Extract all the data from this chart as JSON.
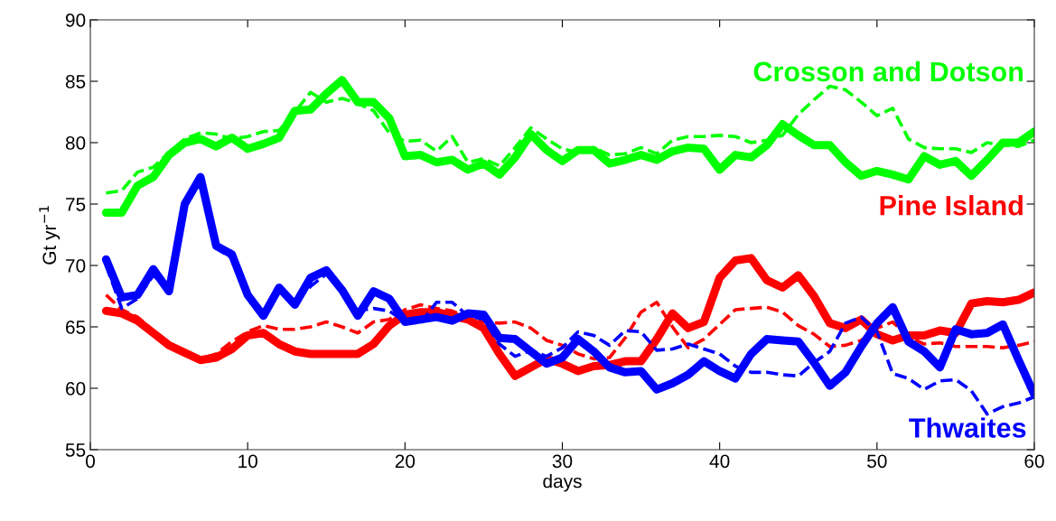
{
  "chart_data": {
    "type": "line",
    "xlabel": "days",
    "ylabel": "Gt yr$^{−1}$",
    "xlim": [
      0,
      60
    ],
    "ylim": [
      55,
      90
    ],
    "xticks": [
      0,
      10,
      20,
      30,
      40,
      50,
      60
    ],
    "yticks": [
      55,
      60,
      65,
      70,
      75,
      80,
      85,
      90
    ],
    "grid": false,
    "legend": false,
    "marker": "none",
    "x": [
      1,
      2,
      3,
      4,
      5,
      6,
      7,
      8,
      9,
      10,
      11,
      12,
      13,
      14,
      15,
      16,
      17,
      18,
      19,
      20,
      21,
      22,
      23,
      24,
      25,
      26,
      27,
      28,
      29,
      30,
      31,
      32,
      33,
      34,
      35,
      36,
      37,
      38,
      39,
      40,
      41,
      42,
      43,
      44,
      45,
      46,
      47,
      48,
      49,
      50,
      51,
      52,
      53,
      54,
      55,
      56,
      57,
      58,
      59,
      60
    ],
    "series": [
      {
        "name": "Crosson and Dotson",
        "color": "#00ff00",
        "line_style": "solid",
        "values": [
          74.3,
          74.3,
          76.5,
          77.2,
          79,
          80,
          80.3,
          79.7,
          80.4,
          79.5,
          79.9,
          80.4,
          82.6,
          82.7,
          84,
          85.1,
          83.3,
          83.3,
          82,
          78.9,
          79,
          78.4,
          78.6,
          77.8,
          78.3,
          77.4,
          78.8,
          80.7,
          79.4,
          78.5,
          79.4,
          79.4,
          78.3,
          78.6,
          79.0,
          78.6,
          79.3,
          79.6,
          79.5,
          77.8,
          79.0,
          78.8,
          79.8,
          81.5,
          80.6,
          79.8,
          79.8,
          78.4,
          77.3,
          77.7,
          77.4,
          77.0,
          78.9,
          78.2,
          78.5,
          77.3,
          78.6,
          80,
          80,
          80.9
        ]
      },
      {
        "color": "#00ff00",
        "line_style": "dashed",
        "values": [
          75.9,
          76.1,
          77.6,
          78,
          79.2,
          80.3,
          80.8,
          80.7,
          80.3,
          80.5,
          80.9,
          81.0,
          82.5,
          84.1,
          83.3,
          83.6,
          83.2,
          82.6,
          80.8,
          80.1,
          80.2,
          79.3,
          80.5,
          78.4,
          78.7,
          78.1,
          79.6,
          81.2,
          80.3,
          79.5,
          79.2,
          79.6,
          79.0,
          79.1,
          79.6,
          79.1,
          80.2,
          80.5,
          80.5,
          80.6,
          80.5,
          80.0,
          80.2,
          80.6,
          82.3,
          83.5,
          84.6,
          84.3,
          83.3,
          82.2,
          82.8,
          80.3,
          79.6,
          79.5,
          79.5,
          79.2,
          80.0,
          79.8,
          79.7,
          80.2
        ]
      },
      {
        "name": "Pine Island",
        "color": "#ff0000",
        "line_style": "solid",
        "values": [
          66.3,
          66.1,
          65.5,
          64.5,
          63.5,
          62.9,
          62.3,
          62.5,
          63.2,
          64.3,
          64.5,
          63.6,
          63.0,
          62.8,
          62.8,
          62.8,
          62.8,
          63.6,
          65.1,
          66.0,
          66.2,
          66.2,
          65.9,
          65.6,
          64.9,
          62.8,
          61.0,
          61.7,
          62.4,
          62.0,
          61.4,
          61.8,
          61.9,
          62.2,
          62.2,
          64.0,
          66.1,
          64.9,
          65.4,
          69.0,
          70.4,
          70.6,
          68.8,
          68.2,
          69.2,
          67.5,
          65.3,
          64.9,
          65.6,
          64.4,
          63.9,
          64.3,
          64.3,
          64.7,
          64.5,
          66.9,
          67.1,
          67.0,
          67.2,
          67.8
        ]
      },
      {
        "color": "#ff0000",
        "line_style": "dashed",
        "values": [
          67.6,
          66.4,
          65.8,
          64.7,
          63.5,
          62.8,
          62.4,
          62.8,
          63.8,
          64.6,
          65.1,
          64.8,
          64.8,
          65.0,
          65.4,
          65.0,
          64.5,
          65.4,
          65.6,
          66.4,
          66.8,
          66.5,
          66.3,
          65.8,
          65.4,
          65.3,
          65.4,
          64.9,
          63.9,
          63.5,
          62.8,
          62.4,
          62.5,
          64.1,
          66.2,
          67.0,
          65.0,
          63.3,
          64.0,
          65.2,
          66.4,
          66.5,
          66.6,
          66.2,
          65.1,
          64.4,
          63.4,
          63.5,
          63.9,
          64.9,
          65.4,
          64.2,
          63.6,
          63.7,
          63.4,
          63.4,
          63.4,
          63.3,
          63.5,
          63.8
        ]
      },
      {
        "name": "Thwaites",
        "color": "#0000ff",
        "line_style": "solid",
        "values": [
          70.5,
          67.4,
          67.6,
          69.7,
          67.9,
          75,
          77.2,
          71.6,
          70.9,
          67.6,
          65.9,
          68.2,
          66.8,
          69,
          69.6,
          68,
          65.9,
          67.9,
          67.3,
          65.4,
          65.6,
          65.8,
          65.5,
          66.1,
          66,
          64.1,
          64,
          63,
          62,
          62.5,
          64,
          63,
          61.7,
          61.3,
          61.4,
          59.9,
          60.4,
          61.1,
          62.2,
          61.4,
          60.8,
          62.8,
          64,
          63.9,
          63.8,
          62.1,
          60.2,
          61.3,
          63.4,
          65.3,
          66.6,
          63.8,
          63,
          61.7,
          64.8,
          64.4,
          64.5,
          65.2,
          62.3,
          59.5
        ]
      },
      {
        "color": "#0000ff",
        "line_style": "dashed",
        "values": [
          70,
          66.5,
          67.3,
          69.2,
          68.0,
          74.8,
          76.8,
          71.4,
          70.6,
          67.5,
          66.2,
          68.2,
          67.0,
          68.3,
          69.3,
          68.1,
          66.3,
          66.5,
          66.3,
          65.4,
          65.3,
          67.0,
          67.0,
          65.9,
          65.6,
          63.6,
          62.6,
          63.1,
          62.6,
          63.3,
          64.6,
          64.3,
          63.5,
          64.7,
          64.6,
          63.1,
          63.2,
          63.6,
          63.2,
          62.8,
          61.8,
          61.3,
          61.3,
          61.1,
          61.0,
          62.1,
          63.0,
          65.3,
          65.8,
          64.6,
          61.2,
          60.8,
          59.9,
          60.6,
          60.7,
          59.8,
          57.9,
          58.5,
          58.8,
          59.3
        ]
      }
    ]
  }
}
